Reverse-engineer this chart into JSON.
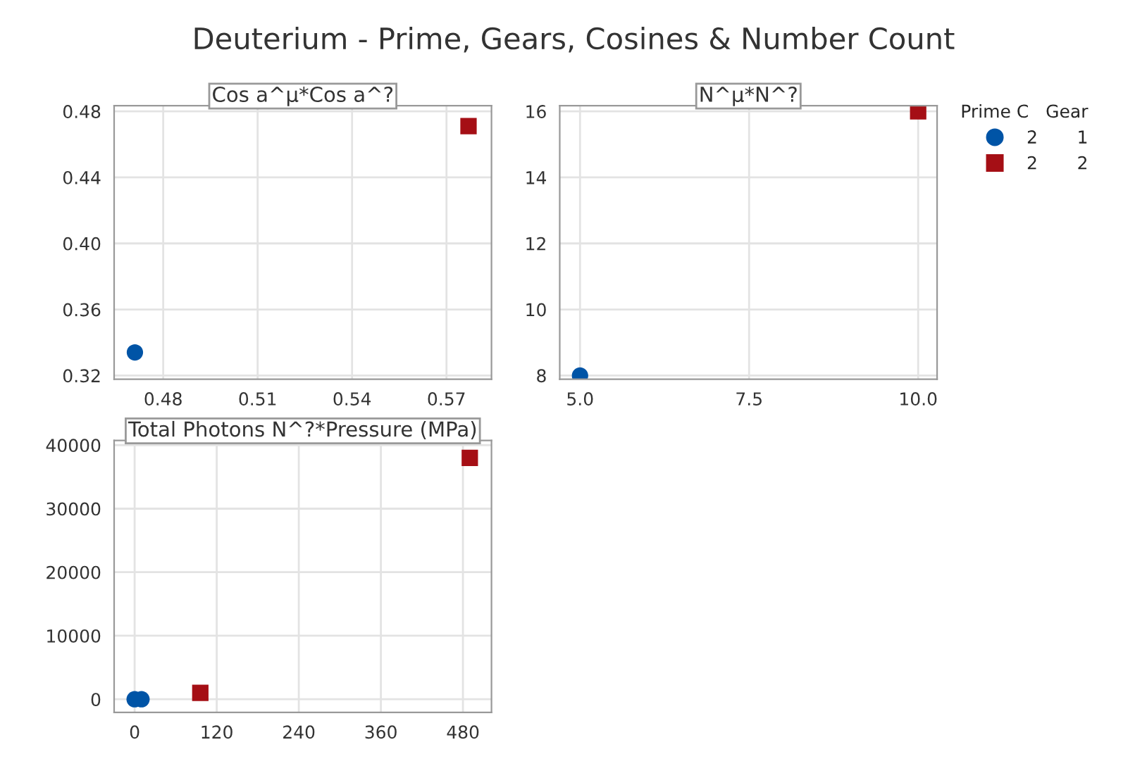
{
  "chart_data": [
    {
      "type": "scatter",
      "title": "Cos a^µ*Cos a^?",
      "annotations": [
        "Deuterium - Prime, Gears, Cosines & Number Count"
      ],
      "xlim": [
        0.4644,
        0.5843
      ],
      "xticks": [
        0.48,
        0.51,
        0.54,
        0.57
      ],
      "ylim": [
        0.3178,
        0.4834
      ],
      "yticks": [
        {
          "value": 0.32,
          "label": "0.32"
        },
        {
          "value": 0.36,
          "label": "0.36"
        },
        {
          "value": 0.4,
          "label": "0.40"
        },
        {
          "value": 0.44,
          "label": "0.44"
        },
        {
          "value": 0.48,
          "label": "0.48"
        }
      ],
      "grid": true,
      "legend": false,
      "series": [
        {
          "color": "#0054a6",
          "marker": "circle",
          "x": [
            0.471
          ],
          "values": [
            0.334
          ]
        },
        {
          "color": "#a50f15",
          "marker": "square",
          "x": [
            0.577
          ],
          "values": [
            0.471
          ]
        }
      ]
    },
    {
      "type": "scatter",
      "title": "N^µ*N^?",
      "legend_title": "Prime C   Gear",
      "xlim": [
        4.7,
        10.28
      ],
      "xticks": [
        {
          "value": 5,
          "label": "5.0"
        },
        7.5,
        {
          "value": 10,
          "label": "10.0"
        }
      ],
      "ylim": [
        7.89,
        16.17
      ],
      "yticks": [
        8,
        10,
        12,
        14,
        16
      ],
      "grid": true,
      "legend": "right",
      "series": [
        {
          "name": "2       1",
          "color": "#0054a6",
          "marker": "circle",
          "x": [
            5
          ],
          "values": [
            8
          ]
        },
        {
          "name": "2       2",
          "color": "#a50f15",
          "marker": "square",
          "x": [
            10
          ],
          "values": [
            16
          ]
        }
      ]
    },
    {
      "type": "scatter",
      "title": "Total Photons N^?*Pressure (MPa)",
      "xlim": [
        -30,
        521.7
      ],
      "xticks": [
        0,
        120,
        240,
        360,
        480
      ],
      "ylim": [
        -2066,
        40738
      ],
      "yticks": [
        0,
        10000,
        20000,
        30000,
        40000
      ],
      "grid": true,
      "legend": false,
      "series": [
        {
          "color": "#0054a6",
          "marker": "circle",
          "x": [
            0,
            10
          ],
          "values": [
            0,
            0
          ]
        },
        {
          "color": "#a50f15",
          "marker": "square",
          "x": [
            96,
            490
          ],
          "values": [
            1000,
            38000
          ]
        }
      ]
    }
  ]
}
